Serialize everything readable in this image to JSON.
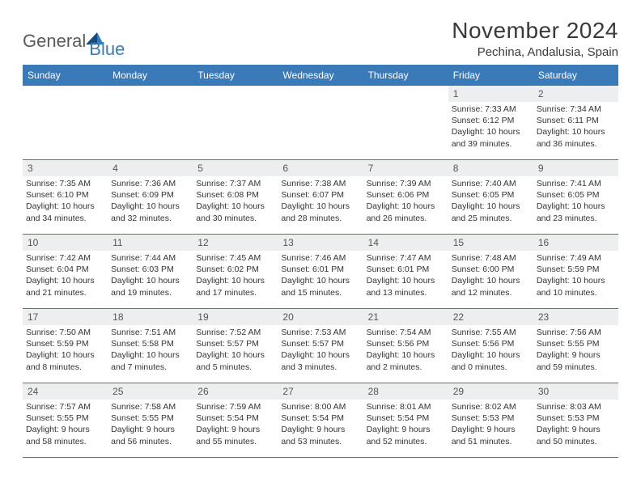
{
  "brand": {
    "general": "General",
    "blue": "Blue"
  },
  "title": "November 2024",
  "location": "Pechina, Andalusia, Spain",
  "colors": {
    "header_bg": "#3a7ab8",
    "header_text": "#ffffff",
    "daynum_bg": "#eceeef",
    "text": "#333333",
    "border": "#3a7ab8"
  },
  "dayHeaders": [
    "Sunday",
    "Monday",
    "Tuesday",
    "Wednesday",
    "Thursday",
    "Friday",
    "Saturday"
  ],
  "weeks": [
    [
      null,
      null,
      null,
      null,
      null,
      {
        "n": "1",
        "sr": "Sunrise: 7:33 AM",
        "ss": "Sunset: 6:12 PM",
        "d1": "Daylight: 10 hours",
        "d2": "and 39 minutes."
      },
      {
        "n": "2",
        "sr": "Sunrise: 7:34 AM",
        "ss": "Sunset: 6:11 PM",
        "d1": "Daylight: 10 hours",
        "d2": "and 36 minutes."
      }
    ],
    [
      {
        "n": "3",
        "sr": "Sunrise: 7:35 AM",
        "ss": "Sunset: 6:10 PM",
        "d1": "Daylight: 10 hours",
        "d2": "and 34 minutes."
      },
      {
        "n": "4",
        "sr": "Sunrise: 7:36 AM",
        "ss": "Sunset: 6:09 PM",
        "d1": "Daylight: 10 hours",
        "d2": "and 32 minutes."
      },
      {
        "n": "5",
        "sr": "Sunrise: 7:37 AM",
        "ss": "Sunset: 6:08 PM",
        "d1": "Daylight: 10 hours",
        "d2": "and 30 minutes."
      },
      {
        "n": "6",
        "sr": "Sunrise: 7:38 AM",
        "ss": "Sunset: 6:07 PM",
        "d1": "Daylight: 10 hours",
        "d2": "and 28 minutes."
      },
      {
        "n": "7",
        "sr": "Sunrise: 7:39 AM",
        "ss": "Sunset: 6:06 PM",
        "d1": "Daylight: 10 hours",
        "d2": "and 26 minutes."
      },
      {
        "n": "8",
        "sr": "Sunrise: 7:40 AM",
        "ss": "Sunset: 6:05 PM",
        "d1": "Daylight: 10 hours",
        "d2": "and 25 minutes."
      },
      {
        "n": "9",
        "sr": "Sunrise: 7:41 AM",
        "ss": "Sunset: 6:05 PM",
        "d1": "Daylight: 10 hours",
        "d2": "and 23 minutes."
      }
    ],
    [
      {
        "n": "10",
        "sr": "Sunrise: 7:42 AM",
        "ss": "Sunset: 6:04 PM",
        "d1": "Daylight: 10 hours",
        "d2": "and 21 minutes."
      },
      {
        "n": "11",
        "sr": "Sunrise: 7:44 AM",
        "ss": "Sunset: 6:03 PM",
        "d1": "Daylight: 10 hours",
        "d2": "and 19 minutes."
      },
      {
        "n": "12",
        "sr": "Sunrise: 7:45 AM",
        "ss": "Sunset: 6:02 PM",
        "d1": "Daylight: 10 hours",
        "d2": "and 17 minutes."
      },
      {
        "n": "13",
        "sr": "Sunrise: 7:46 AM",
        "ss": "Sunset: 6:01 PM",
        "d1": "Daylight: 10 hours",
        "d2": "and 15 minutes."
      },
      {
        "n": "14",
        "sr": "Sunrise: 7:47 AM",
        "ss": "Sunset: 6:01 PM",
        "d1": "Daylight: 10 hours",
        "d2": "and 13 minutes."
      },
      {
        "n": "15",
        "sr": "Sunrise: 7:48 AM",
        "ss": "Sunset: 6:00 PM",
        "d1": "Daylight: 10 hours",
        "d2": "and 12 minutes."
      },
      {
        "n": "16",
        "sr": "Sunrise: 7:49 AM",
        "ss": "Sunset: 5:59 PM",
        "d1": "Daylight: 10 hours",
        "d2": "and 10 minutes."
      }
    ],
    [
      {
        "n": "17",
        "sr": "Sunrise: 7:50 AM",
        "ss": "Sunset: 5:59 PM",
        "d1": "Daylight: 10 hours",
        "d2": "and 8 minutes."
      },
      {
        "n": "18",
        "sr": "Sunrise: 7:51 AM",
        "ss": "Sunset: 5:58 PM",
        "d1": "Daylight: 10 hours",
        "d2": "and 7 minutes."
      },
      {
        "n": "19",
        "sr": "Sunrise: 7:52 AM",
        "ss": "Sunset: 5:57 PM",
        "d1": "Daylight: 10 hours",
        "d2": "and 5 minutes."
      },
      {
        "n": "20",
        "sr": "Sunrise: 7:53 AM",
        "ss": "Sunset: 5:57 PM",
        "d1": "Daylight: 10 hours",
        "d2": "and 3 minutes."
      },
      {
        "n": "21",
        "sr": "Sunrise: 7:54 AM",
        "ss": "Sunset: 5:56 PM",
        "d1": "Daylight: 10 hours",
        "d2": "and 2 minutes."
      },
      {
        "n": "22",
        "sr": "Sunrise: 7:55 AM",
        "ss": "Sunset: 5:56 PM",
        "d1": "Daylight: 10 hours",
        "d2": "and 0 minutes."
      },
      {
        "n": "23",
        "sr": "Sunrise: 7:56 AM",
        "ss": "Sunset: 5:55 PM",
        "d1": "Daylight: 9 hours",
        "d2": "and 59 minutes."
      }
    ],
    [
      {
        "n": "24",
        "sr": "Sunrise: 7:57 AM",
        "ss": "Sunset: 5:55 PM",
        "d1": "Daylight: 9 hours",
        "d2": "and 58 minutes."
      },
      {
        "n": "25",
        "sr": "Sunrise: 7:58 AM",
        "ss": "Sunset: 5:55 PM",
        "d1": "Daylight: 9 hours",
        "d2": "and 56 minutes."
      },
      {
        "n": "26",
        "sr": "Sunrise: 7:59 AM",
        "ss": "Sunset: 5:54 PM",
        "d1": "Daylight: 9 hours",
        "d2": "and 55 minutes."
      },
      {
        "n": "27",
        "sr": "Sunrise: 8:00 AM",
        "ss": "Sunset: 5:54 PM",
        "d1": "Daylight: 9 hours",
        "d2": "and 53 minutes."
      },
      {
        "n": "28",
        "sr": "Sunrise: 8:01 AM",
        "ss": "Sunset: 5:54 PM",
        "d1": "Daylight: 9 hours",
        "d2": "and 52 minutes."
      },
      {
        "n": "29",
        "sr": "Sunrise: 8:02 AM",
        "ss": "Sunset: 5:53 PM",
        "d1": "Daylight: 9 hours",
        "d2": "and 51 minutes."
      },
      {
        "n": "30",
        "sr": "Sunrise: 8:03 AM",
        "ss": "Sunset: 5:53 PM",
        "d1": "Daylight: 9 hours",
        "d2": "and 50 minutes."
      }
    ]
  ]
}
